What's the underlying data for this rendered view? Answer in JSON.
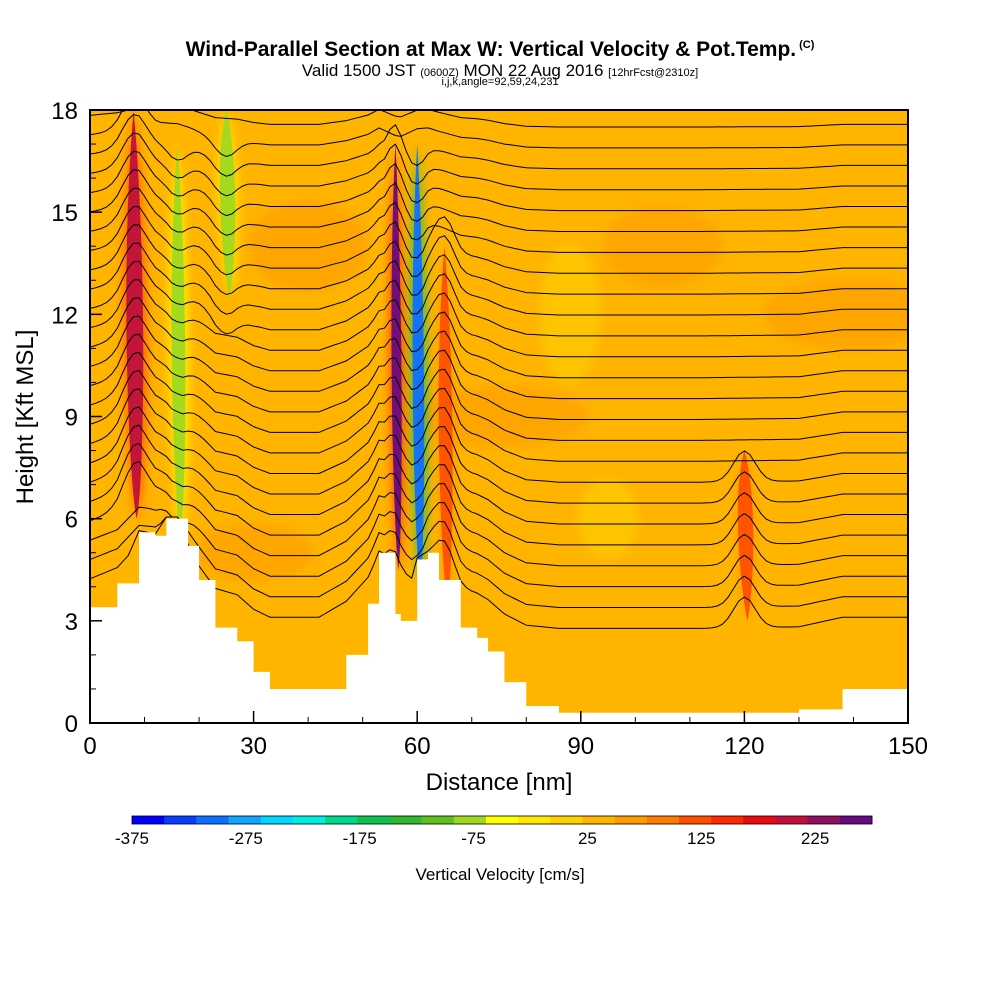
{
  "chart_data": {
    "type": "contour-cross-section",
    "title": "Wind-Parallel Section at Max W: Vertical Velocity & Pot.Temp.",
    "title_mark": "(C)",
    "subtitle_main": "Valid 1500 JST",
    "subtitle_utc": "(0600Z)",
    "subtitle_date": "MON 22 Aug 2016",
    "subtitle_fcst": "[12hrFcst@2310z]",
    "subtitle_indices": "i,j,k,angle=92,59,24,231",
    "xlabel": "Distance [nm]",
    "ylabel": "Height [Kft MSL]",
    "xlim": [
      0,
      150
    ],
    "ylim": [
      0,
      18
    ],
    "x_ticks": [
      0,
      30,
      60,
      90,
      120,
      150
    ],
    "y_ticks": [
      0,
      3,
      6,
      9,
      12,
      15,
      18
    ],
    "colorbar": {
      "title": "Vertical Velocity [cm/s]",
      "range": [
        -375,
        275
      ],
      "labels": [
        -375,
        -275,
        -175,
        -75,
        25,
        125,
        225
      ],
      "colors": [
        "#0000ff",
        "#0a3cff",
        "#0f70ff",
        "#12a5ff",
        "#00d7ff",
        "#00eee0",
        "#00d890",
        "#10c050",
        "#30b830",
        "#60c020",
        "#a0d820",
        "#ffff00",
        "#ffe800",
        "#ffd000",
        "#ffb400",
        "#ff9a00",
        "#ff7a00",
        "#ff5000",
        "#ff2a00",
        "#e80a10",
        "#c0103c",
        "#901060",
        "#6a0a80"
      ]
    },
    "terrain_kft": [
      [
        0,
        3.4
      ],
      [
        5,
        4.1
      ],
      [
        9,
        5.6
      ],
      [
        12,
        5.5
      ],
      [
        14,
        6.0
      ],
      [
        16,
        6.0
      ],
      [
        18,
        5.2
      ],
      [
        20,
        4.2
      ],
      [
        23,
        2.8
      ],
      [
        27,
        2.4
      ],
      [
        30,
        1.5
      ],
      [
        33,
        1.0
      ],
      [
        42,
        1.0
      ],
      [
        47,
        2.0
      ],
      [
        51,
        3.5
      ],
      [
        53,
        5.0
      ],
      [
        56,
        3.2
      ],
      [
        57,
        3.0
      ],
      [
        60,
        4.8
      ],
      [
        62,
        5.0
      ],
      [
        64,
        4.2
      ],
      [
        68,
        2.8
      ],
      [
        71,
        2.5
      ],
      [
        73,
        2.1
      ],
      [
        76,
        1.2
      ],
      [
        80,
        0.5
      ],
      [
        86,
        0.3
      ],
      [
        95,
        0.3
      ],
      [
        112,
        0.3
      ],
      [
        130,
        0.4
      ],
      [
        138,
        1.0
      ],
      [
        150,
        1.0
      ]
    ],
    "velocity_features": [
      {
        "x": 8,
        "ytop": 18,
        "ybot": 6.0,
        "w": 210,
        "width_nm": 2.2
      },
      {
        "x": 16,
        "ytop": 17,
        "ybot": 5.5,
        "w": -90,
        "width_nm": 1.8
      },
      {
        "x": 25,
        "ytop": 18,
        "ybot": 12.5,
        "w": -70,
        "width_nm": 2.0
      },
      {
        "x": 56,
        "ytop": 17,
        "ybot": 4.5,
        "w": 260,
        "width_nm": 1.3
      },
      {
        "x": 60,
        "ytop": 17,
        "ybot": 4.0,
        "w": -300,
        "width_nm": 1.5
      },
      {
        "x": 65,
        "ytop": 14,
        "ybot": 3.5,
        "w": 120,
        "width_nm": 1.8
      },
      {
        "x": 120,
        "ytop": 8,
        "ybot": 3.0,
        "w": 110,
        "width_nm": 2.0
      }
    ],
    "theta_contours": {
      "count": 26,
      "base_kft": 3.2,
      "spacing_kft": 0.6
    }
  }
}
